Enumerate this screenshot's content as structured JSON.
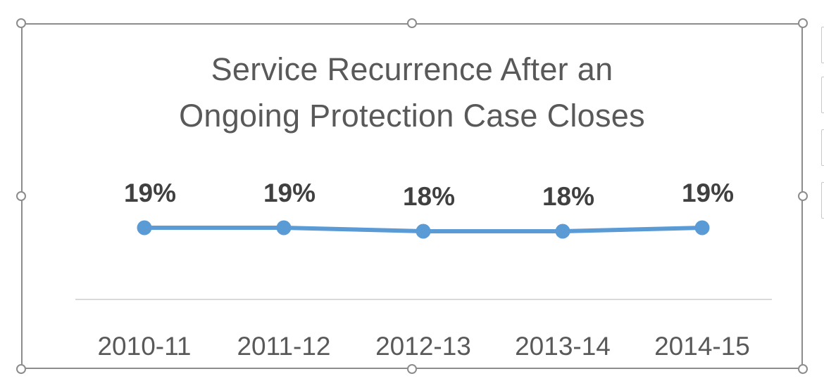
{
  "chart_data": {
    "type": "line",
    "title": "Service Recurrence After an Ongoing Protection Case Closes",
    "categories": [
      "2010-11",
      "2011-12",
      "2012-13",
      "2013-14",
      "2014-15"
    ],
    "series": [
      {
        "values": [
          19,
          19,
          18,
          18,
          19
        ],
        "data_labels": [
          "19%",
          "19%",
          "18%",
          "18%",
          "19%"
        ],
        "color": "#5b9bd5"
      }
    ],
    "xlabel": "",
    "ylabel": "",
    "grid": false,
    "legend": "none"
  },
  "colors": {
    "series_line": "#5b9bd5",
    "axis_line": "#d9d9d9",
    "label_text": "#404040",
    "tick_text": "#595959",
    "frame_border": "#8c8c8c"
  }
}
